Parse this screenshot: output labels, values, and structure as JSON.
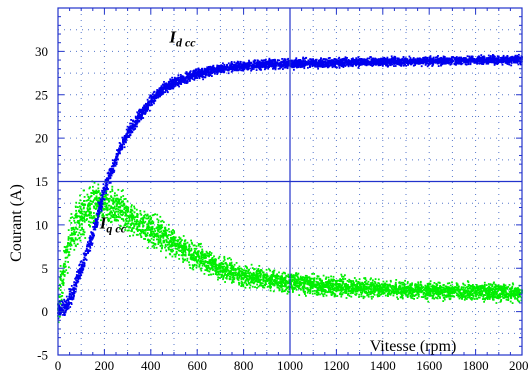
{
  "chart_data": {
    "type": "scatter",
    "title": "",
    "xlabel": "Vitesse (rpm)",
    "ylabel": "Courant (A)",
    "xlim": [
      0,
      2000
    ],
    "ylim": [
      -5,
      35
    ],
    "x_ticks": [
      0,
      200,
      400,
      600,
      800,
      1000,
      1200,
      1400,
      1600,
      1800,
      2000
    ],
    "y_ticks": [
      -5,
      0,
      5,
      10,
      15,
      20,
      25,
      30
    ],
    "grid": "dotted",
    "major_lines": {
      "x": 1000,
      "y": 15
    },
    "series": [
      {
        "name": "Iq cc",
        "label_main": "I",
        "label_sub": "q cc",
        "color": "#00ee00",
        "x": [
          0,
          20,
          50,
          80,
          120,
          160,
          200,
          250,
          300,
          400,
          500,
          600,
          700,
          800,
          900,
          1000,
          1200,
          1400,
          1600,
          1800,
          2000
        ],
        "y": [
          0.5,
          4,
          8,
          10,
          11.5,
          12.5,
          12.5,
          12,
          11,
          9.5,
          7.8,
          6.2,
          5,
          4.2,
          3.7,
          3.3,
          2.9,
          2.6,
          2.4,
          2.3,
          2.2
        ],
        "spread": [
          2.0,
          2.0,
          2.0,
          2.0,
          2.0,
          2.0,
          1.6,
          1.6,
          1.6,
          1.6,
          1.4,
          1.2,
          1.0,
          1.0,
          0.9,
          0.9,
          0.9,
          0.8,
          0.8,
          0.8,
          0.8
        ]
      },
      {
        "name": "Id cc",
        "label_main": "I",
        "label_sub": "d cc",
        "color": "#0000ee",
        "x": [
          0,
          30,
          60,
          100,
          150,
          200,
          250,
          300,
          350,
          400,
          450,
          500,
          600,
          700,
          800,
          900,
          1000,
          1200,
          1400,
          1600,
          1800,
          2000
        ],
        "y": [
          0,
          0.5,
          2,
          5,
          9,
          14,
          17.5,
          20.5,
          22.5,
          24.3,
          25.6,
          26.4,
          27.4,
          28,
          28.3,
          28.5,
          28.6,
          28.7,
          28.8,
          28.9,
          29,
          29
        ],
        "spread": [
          0.8,
          0.8,
          0.8,
          0.8,
          0.8,
          0.8,
          0.8,
          0.7,
          0.6,
          0.6,
          0.5,
          0.5,
          0.5,
          0.45,
          0.45,
          0.45,
          0.45,
          0.4,
          0.4,
          0.4,
          0.4,
          0.4
        ]
      }
    ],
    "annotations": [
      {
        "series": "Id cc",
        "x": 480,
        "y": 31
      },
      {
        "series": "Iq cc",
        "x": 180,
        "y": 9.6
      }
    ]
  }
}
